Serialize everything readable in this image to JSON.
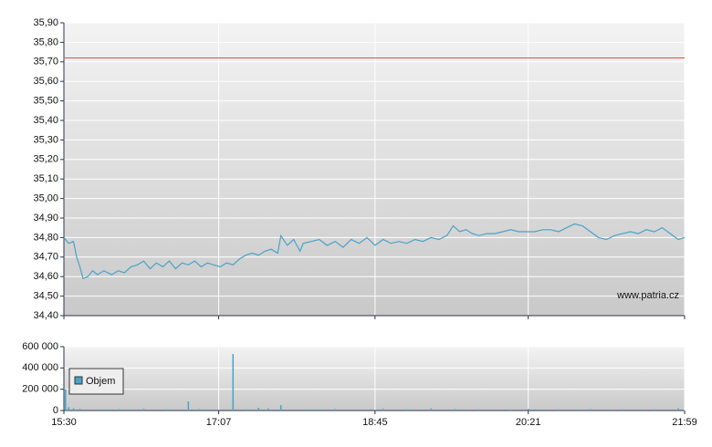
{
  "chart_data": [
    {
      "type": "line",
      "color": "#4aa3c8",
      "x": [
        "15:30",
        "15:33",
        "15:36",
        "15:38",
        "15:40",
        "15:42",
        "15:45",
        "15:48",
        "15:51",
        "15:55",
        "16:00",
        "16:04",
        "16:08",
        "16:12",
        "16:16",
        "16:20",
        "16:24",
        "16:28",
        "16:32",
        "16:36",
        "16:40",
        "16:44",
        "16:48",
        "16:52",
        "16:56",
        "17:00",
        "17:04",
        "17:08",
        "17:12",
        "17:16",
        "17:20",
        "17:24",
        "17:28",
        "17:32",
        "17:36",
        "17:40",
        "17:44",
        "17:46",
        "17:50",
        "17:54",
        "17:58",
        "18:00",
        "18:05",
        "18:10",
        "18:15",
        "18:20",
        "18:25",
        "18:30",
        "18:35",
        "18:40",
        "18:45",
        "18:50",
        "18:55",
        "19:00",
        "19:05",
        "19:10",
        "19:15",
        "19:20",
        "19:25",
        "19:30",
        "19:34",
        "19:38",
        "19:42",
        "19:46",
        "19:50",
        "19:55",
        "20:00",
        "20:05",
        "20:10",
        "20:15",
        "20:20",
        "20:25",
        "20:30",
        "20:35",
        "20:40",
        "20:45",
        "20:50",
        "20:55",
        "21:00",
        "21:05",
        "21:10",
        "21:15",
        "21:20",
        "21:25",
        "21:30",
        "21:35",
        "21:40",
        "21:45",
        "21:50",
        "21:55",
        "21:59"
      ],
      "values": [
        34.8,
        34.77,
        34.78,
        34.7,
        34.65,
        34.59,
        34.6,
        34.63,
        34.61,
        34.63,
        34.61,
        34.63,
        34.62,
        34.65,
        34.66,
        34.68,
        34.64,
        34.67,
        34.65,
        34.68,
        34.64,
        34.67,
        34.66,
        34.68,
        34.65,
        34.67,
        34.66,
        34.65,
        34.67,
        34.66,
        34.69,
        34.71,
        34.72,
        34.71,
        34.73,
        34.74,
        34.72,
        34.81,
        34.76,
        34.79,
        34.73,
        34.77,
        34.78,
        34.79,
        34.76,
        34.78,
        34.75,
        34.79,
        34.77,
        34.8,
        34.76,
        34.79,
        34.77,
        34.78,
        34.77,
        34.79,
        34.78,
        34.8,
        34.79,
        34.81,
        34.86,
        34.83,
        34.84,
        34.82,
        34.81,
        34.82,
        34.82,
        34.83,
        34.84,
        34.83,
        34.83,
        34.83,
        34.84,
        34.84,
        34.83,
        34.85,
        34.87,
        34.86,
        34.83,
        34.8,
        34.79,
        34.81,
        34.82,
        34.83,
        34.82,
        34.84,
        34.83,
        34.85,
        34.82,
        34.79,
        34.8
      ],
      "ylim": [
        34.4,
        35.9
      ],
      "yticks": [
        {
          "value": 34.4,
          "label": "34,40"
        },
        {
          "value": 34.5,
          "label": "34,50"
        },
        {
          "value": 34.6,
          "label": "34,60"
        },
        {
          "value": 34.7,
          "label": "34,70"
        },
        {
          "value": 34.8,
          "label": "34,80"
        },
        {
          "value": 34.9,
          "label": "34,90"
        },
        {
          "value": 35.0,
          "label": "35,00"
        },
        {
          "value": 35.1,
          "label": "35,10"
        },
        {
          "value": 35.2,
          "label": "35,20"
        },
        {
          "value": 35.3,
          "label": "35,30"
        },
        {
          "value": 35.4,
          "label": "35,40"
        },
        {
          "value": 35.5,
          "label": "35,50"
        },
        {
          "value": 35.6,
          "label": "35,60"
        },
        {
          "value": 35.7,
          "label": "35,70"
        },
        {
          "value": 35.8,
          "label": "35,80"
        },
        {
          "value": 35.9,
          "label": "35,90"
        }
      ],
      "reference_line": {
        "value": 35.72,
        "color": "#e05050"
      },
      "watermark": "www.patria.cz",
      "grid": true
    },
    {
      "type": "bar",
      "series": [
        {
          "name": "Objem",
          "color": "#4aa3c8",
          "x": [
            "15:31",
            "15:33",
            "15:36",
            "15:40",
            "15:52",
            "16:05",
            "16:20",
            "16:35",
            "16:48",
            "16:55",
            "17:16",
            "17:25",
            "17:32",
            "17:38",
            "17:46",
            "18:02",
            "18:20",
            "18:50",
            "19:05",
            "19:20",
            "19:35",
            "19:50",
            "20:10",
            "20:21",
            "20:40",
            "21:00",
            "21:20",
            "21:40",
            "21:55"
          ],
          "values": [
            200000,
            30000,
            20000,
            15000,
            10000,
            12000,
            15000,
            10000,
            86000,
            12000,
            531000,
            10000,
            25000,
            20000,
            50000,
            10000,
            12000,
            15000,
            10000,
            20000,
            12000,
            10000,
            8000,
            15000,
            10000,
            12000,
            10000,
            10000,
            20000
          ]
        }
      ],
      "xlim": [
        "15:30",
        "21:59"
      ],
      "xticks": [
        "15:30",
        "17:07",
        "18:45",
        "20:21",
        "21:59"
      ],
      "ylim": [
        0,
        600000
      ],
      "yticks": [
        0,
        {
          "value": 200000,
          "label": "200 000"
        },
        {
          "value": 400000,
          "label": "400 000"
        },
        {
          "value": 600000,
          "label": "600 000"
        }
      ],
      "grid": true
    }
  ]
}
